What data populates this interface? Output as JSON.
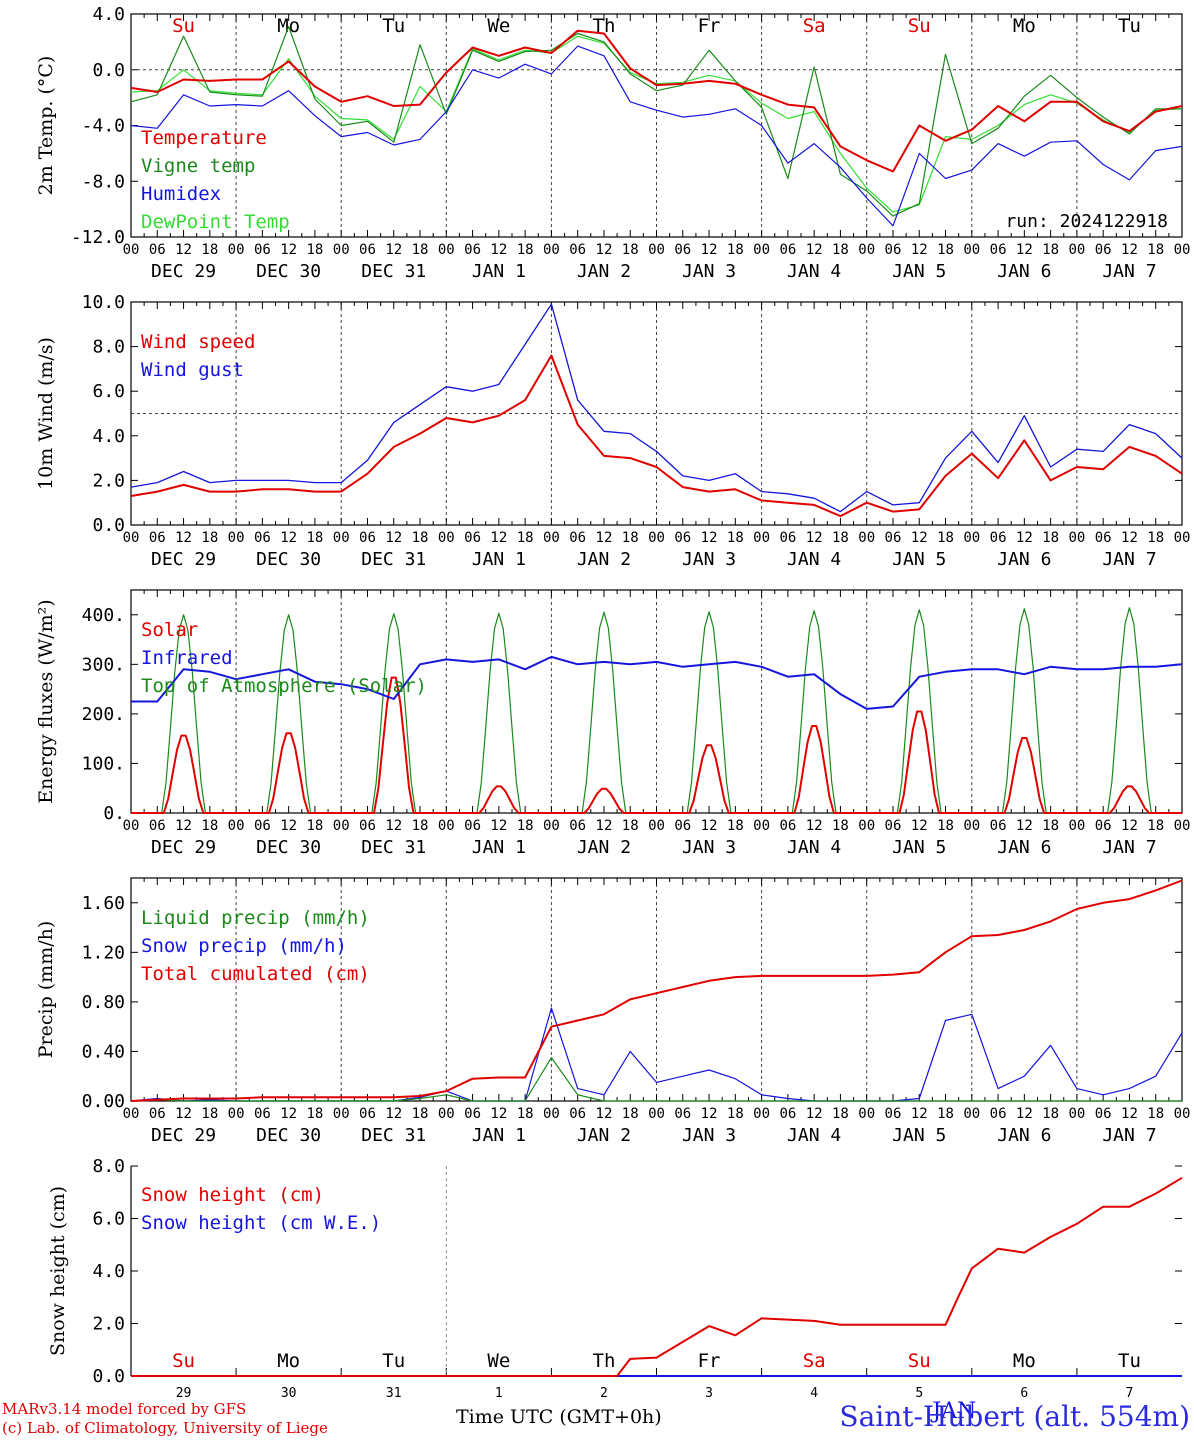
{
  "colors": {
    "red": "#e00000",
    "green": "#1a8a1a",
    "lightgreen": "#33dd33",
    "blue": "#1515dd",
    "grey": "#555555"
  },
  "day_labels": [
    "Su",
    "Mo",
    "Tu",
    "We",
    "Th",
    "Fr",
    "Sa",
    "Su",
    "Mo",
    "Tu"
  ],
  "weekend_flags": [
    true,
    false,
    false,
    false,
    false,
    false,
    true,
    true,
    false,
    false
  ],
  "date_labels": [
    "DEC 29",
    "DEC 30",
    "DEC 31",
    "JAN  1",
    "JAN  2",
    "JAN  3",
    "JAN  4",
    "JAN  5",
    "JAN  6",
    "JAN  7"
  ],
  "hour_labels": [
    "00",
    "06",
    "12",
    "18"
  ],
  "bottom_day_numbers": [
    "29",
    "30",
    "31",
    "1",
    "2",
    "3",
    "4",
    "5",
    "6",
    "7"
  ],
  "overlap_label": "JAN",
  "run_label": "run: 2024122918",
  "footer": {
    "model": "MARv3.14 model forced by GFS",
    "lab": "(c) Lab. of Climatology, University of Liege",
    "time_axis": "Time UTC (GMT+0h)",
    "station": "Saint-Hubert (alt. 554m)"
  },
  "chart_data": [
    {
      "type": "line",
      "ylabel": "2m Temp. (°C)",
      "ylim": [
        -12,
        4
      ],
      "yticks": [
        "4.0",
        "0.0",
        "-4.0",
        "-8.0",
        "-12.0"
      ],
      "reference_line": 0,
      "legend": [
        "Temperature",
        "Vigne temp",
        "Humidex",
        "DewPoint Temp"
      ],
      "x_hours": [
        0,
        6,
        12,
        18,
        24,
        30,
        36,
        42,
        48,
        54,
        60,
        66,
        72,
        78,
        84,
        90,
        96,
        102,
        108,
        114,
        120,
        126,
        132,
        138,
        144,
        150,
        156,
        162,
        168,
        174,
        180,
        186,
        192,
        198,
        204,
        210,
        216,
        222,
        228,
        234,
        240
      ],
      "series": [
        {
          "name": "Temperature",
          "color": "red",
          "values": [
            -1.3,
            -1.6,
            -0.7,
            -0.8,
            -0.7,
            -0.7,
            0.6,
            -1.2,
            -2.3,
            -1.9,
            -2.6,
            -2.5,
            -0.2,
            1.6,
            1.0,
            1.6,
            1.2,
            2.8,
            2.6,
            0.1,
            -1.1,
            -1.0,
            -0.8,
            -1.0,
            -1.8,
            -2.5,
            -2.7,
            -5.5,
            -6.5,
            -7.3,
            -4.0,
            -5.1,
            -4.3,
            -2.6,
            -3.7,
            -2.3,
            -2.3,
            -3.7,
            -4.4,
            -3.0,
            -2.6
          ]
        },
        {
          "name": "Vigne temp",
          "color": "green",
          "values": [
            -2.3,
            -1.8,
            2.4,
            -1.6,
            -1.8,
            -1.9,
            3.1,
            -2.1,
            -4.0,
            -3.7,
            -5.2,
            1.8,
            -3.2,
            1.4,
            0.6,
            1.3,
            1.4,
            2.6,
            2.0,
            -0.3,
            -1.5,
            -1.1,
            1.4,
            -0.8,
            -2.7,
            -7.8,
            0.2,
            -7.5,
            -8.7,
            -10.5,
            -9.6,
            1.1,
            -5.3,
            -4.2,
            -1.9,
            -0.4,
            -2.0,
            -3.4,
            -4.6,
            -2.8,
            -2.8
          ]
        },
        {
          "name": "Humidex",
          "color": "blue",
          "values": [
            -4.0,
            -4.2,
            -1.8,
            -2.6,
            -2.5,
            -2.6,
            -1.5,
            -3.3,
            -4.8,
            -4.5,
            -5.4,
            -5.0,
            -3.0,
            0.0,
            -0.6,
            0.4,
            -0.3,
            1.7,
            1.0,
            -2.3,
            -2.9,
            -3.4,
            -3.2,
            -2.8,
            -4.0,
            -6.7,
            -5.3,
            -7.0,
            -9.2,
            -11.2,
            -6.0,
            -7.8,
            -7.2,
            -5.3,
            -6.2,
            -5.2,
            -5.1,
            -6.8,
            -7.9,
            -5.8,
            -5.5
          ]
        },
        {
          "name": "DewPoint Temp",
          "color": "lightgreen",
          "values": [
            -1.6,
            -1.5,
            0.0,
            -1.5,
            -1.7,
            -1.8,
            0.8,
            -1.9,
            -3.5,
            -3.6,
            -5.0,
            -1.2,
            -3.0,
            1.5,
            0.7,
            1.4,
            1.2,
            2.4,
            1.9,
            -0.2,
            -1.0,
            -0.9,
            -0.4,
            -0.8,
            -2.4,
            -3.5,
            -3.0,
            -6.0,
            -8.5,
            -10.2,
            -9.7,
            -4.8,
            -5.0,
            -4.0,
            -2.5,
            -1.8,
            -2.4,
            -3.6,
            -4.5,
            -2.9,
            -2.8
          ]
        }
      ]
    },
    {
      "type": "line",
      "ylabel": "10m Wind (m/s)",
      "ylim": [
        0,
        10
      ],
      "yticks": [
        "10.0",
        "8.0",
        "6.0",
        "4.0",
        "2.0",
        "0.0"
      ],
      "reference_line": 5,
      "legend": [
        "Wind speed",
        "Wind gust"
      ],
      "x_hours": [
        0,
        6,
        12,
        18,
        24,
        30,
        36,
        42,
        48,
        54,
        60,
        66,
        72,
        78,
        84,
        90,
        96,
        102,
        108,
        114,
        120,
        126,
        132,
        138,
        144,
        150,
        156,
        162,
        168,
        174,
        180,
        186,
        192,
        198,
        204,
        210,
        216,
        222,
        228,
        234,
        240
      ],
      "series": [
        {
          "name": "Wind speed",
          "color": "red",
          "values": [
            1.3,
            1.5,
            1.8,
            1.5,
            1.5,
            1.6,
            1.6,
            1.5,
            1.5,
            2.3,
            3.5,
            4.1,
            4.8,
            4.6,
            4.9,
            5.6,
            7.6,
            4.5,
            3.1,
            3.0,
            2.6,
            1.7,
            1.5,
            1.6,
            1.1,
            1.0,
            0.9,
            0.4,
            1.0,
            0.6,
            0.7,
            2.2,
            3.2,
            2.1,
            3.8,
            2.0,
            2.6,
            2.5,
            3.5,
            3.1,
            2.3
          ]
        },
        {
          "name": "Wind gust",
          "color": "blue",
          "values": [
            1.7,
            1.9,
            2.4,
            1.9,
            2.0,
            2.0,
            2.0,
            1.9,
            1.9,
            2.9,
            4.6,
            5.4,
            6.2,
            6.0,
            6.3,
            8.1,
            9.9,
            5.6,
            4.2,
            4.1,
            3.3,
            2.2,
            2.0,
            2.3,
            1.5,
            1.4,
            1.2,
            0.6,
            1.5,
            0.9,
            1.0,
            3.0,
            4.2,
            2.8,
            4.9,
            2.6,
            3.4,
            3.3,
            4.5,
            4.1,
            3.0
          ]
        }
      ]
    },
    {
      "type": "line",
      "ylabel": "Energy fluxes (W/m²)",
      "ylim": [
        0,
        450
      ],
      "yticks": [
        "400.",
        "300.",
        "200.",
        "100.",
        "0."
      ],
      "legend": [
        "Solar",
        "Infrared",
        "Top of Atmosphere (Solar)"
      ],
      "daily_peak_hour": 12,
      "series": [
        {
          "name": "Solar",
          "color": "red",
          "daily_peaks": [
            160,
            165,
            280,
            55,
            50,
            140,
            180,
            210,
            155,
            55
          ]
        },
        {
          "name": "Top of Atmosphere (Solar)",
          "color": "green",
          "daily_peaks": [
            400,
            400,
            402,
            403,
            405,
            406,
            408,
            410,
            412,
            414
          ]
        },
        {
          "name": "Infrared",
          "color": "blue",
          "x_hours": [
            0,
            6,
            12,
            18,
            24,
            30,
            36,
            42,
            48,
            54,
            60,
            66,
            72,
            78,
            84,
            90,
            96,
            102,
            108,
            114,
            120,
            126,
            132,
            138,
            144,
            150,
            156,
            162,
            168,
            174,
            180,
            186,
            192,
            198,
            204,
            210,
            216,
            222,
            228,
            234,
            240
          ],
          "values": [
            225,
            225,
            290,
            285,
            270,
            280,
            290,
            265,
            260,
            250,
            230,
            300,
            310,
            305,
            310,
            290,
            315,
            300,
            305,
            300,
            305,
            295,
            300,
            305,
            295,
            275,
            280,
            240,
            210,
            215,
            275,
            285,
            290,
            290,
            280,
            295,
            290,
            290,
            295,
            295,
            300
          ]
        }
      ]
    },
    {
      "type": "line",
      "ylabel": "Precip (mm/h)",
      "ylim": [
        0,
        1.8
      ],
      "yticks": [
        "1.60",
        "1.20",
        "0.80",
        "0.40",
        "0.00"
      ],
      "legend": [
        "Liquid precip (mm/h)",
        "Snow precip (mm/h)",
        "Total cumulated (cm)"
      ],
      "x_hours": [
        0,
        6,
        12,
        18,
        24,
        30,
        36,
        42,
        48,
        54,
        60,
        66,
        72,
        78,
        84,
        90,
        96,
        102,
        108,
        114,
        120,
        126,
        132,
        138,
        144,
        150,
        156,
        162,
        168,
        174,
        180,
        186,
        192,
        198,
        204,
        210,
        216,
        222,
        228,
        234,
        240
      ],
      "series": [
        {
          "name": "Total cumulated (cm)",
          "color": "red",
          "values": [
            0.0,
            0.01,
            0.02,
            0.02,
            0.02,
            0.03,
            0.03,
            0.03,
            0.03,
            0.03,
            0.03,
            0.04,
            0.08,
            0.18,
            0.19,
            0.19,
            0.6,
            0.65,
            0.7,
            0.82,
            0.87,
            0.92,
            0.97,
            1.0,
            1.01,
            1.01,
            1.01,
            1.01,
            1.01,
            1.02,
            1.04,
            1.2,
            1.33,
            1.34,
            1.38,
            1.45,
            1.55,
            1.6,
            1.63,
            1.7,
            1.78
          ]
        },
        {
          "name": "Snow precip (mm/h)",
          "color": "blue",
          "values": [
            0.0,
            0.02,
            0.0,
            0.01,
            0.0,
            0.0,
            0.0,
            0.0,
            0.0,
            0.0,
            0.0,
            0.03,
            0.08,
            0.0,
            0.0,
            0.0,
            0.75,
            0.1,
            0.05,
            0.4,
            0.15,
            0.2,
            0.25,
            0.18,
            0.05,
            0.02,
            0.0,
            0.0,
            0.0,
            0.0,
            0.02,
            0.65,
            0.7,
            0.1,
            0.2,
            0.45,
            0.1,
            0.05,
            0.1,
            0.2,
            0.55
          ]
        },
        {
          "name": "Liquid precip (mm/h)",
          "color": "green",
          "values": [
            0.0,
            0.01,
            0.0,
            0.0,
            0.0,
            0.0,
            0.0,
            0.0,
            0.0,
            0.0,
            0.0,
            0.02,
            0.05,
            0.0,
            0.0,
            0.0,
            0.35,
            0.05,
            0.0,
            0.0,
            0.0,
            0.0,
            0.0,
            0.0,
            0.0,
            0.0,
            0.0,
            0.0,
            0.0,
            0.0,
            0.0,
            0.0,
            0.0,
            0.0,
            0.0,
            0.0,
            0.0,
            0.0,
            0.0,
            0.0,
            0.0
          ]
        }
      ]
    },
    {
      "type": "line",
      "ylabel": "Snow height (cm)",
      "ylim": [
        0,
        8
      ],
      "yticks": [
        "8.0",
        "6.0",
        "4.0",
        "2.0",
        "0.0"
      ],
      "legend": [
        "Snow height (cm)",
        "Snow height (cm W.E.)"
      ],
      "x_hours": [
        0,
        24,
        48,
        72,
        96,
        111,
        114,
        120,
        126,
        132,
        138,
        144,
        150,
        156,
        162,
        168,
        174,
        180,
        186,
        189,
        192,
        198,
        204,
        210,
        216,
        222,
        228,
        234,
        240
      ],
      "series": [
        {
          "name": "Snow height (cm)",
          "color": "red",
          "values": [
            0.0,
            0.0,
            0.0,
            0.0,
            0.0,
            0.0,
            0.65,
            0.7,
            1.3,
            1.9,
            1.55,
            2.2,
            2.15,
            2.1,
            1.95,
            1.95,
            1.95,
            1.95,
            1.95,
            3.05,
            4.1,
            4.85,
            4.7,
            5.3,
            5.8,
            6.45,
            6.45,
            6.95,
            7.55
          ]
        },
        {
          "name": "Snow height (cm W.E.)",
          "color": "blue",
          "values": [
            0,
            0,
            0,
            0,
            0,
            0,
            0,
            0,
            0,
            0,
            0,
            0,
            0,
            0,
            0,
            0,
            0,
            0,
            0,
            0,
            0,
            0,
            0,
            0,
            0,
            0,
            0,
            0,
            0
          ]
        }
      ]
    }
  ]
}
